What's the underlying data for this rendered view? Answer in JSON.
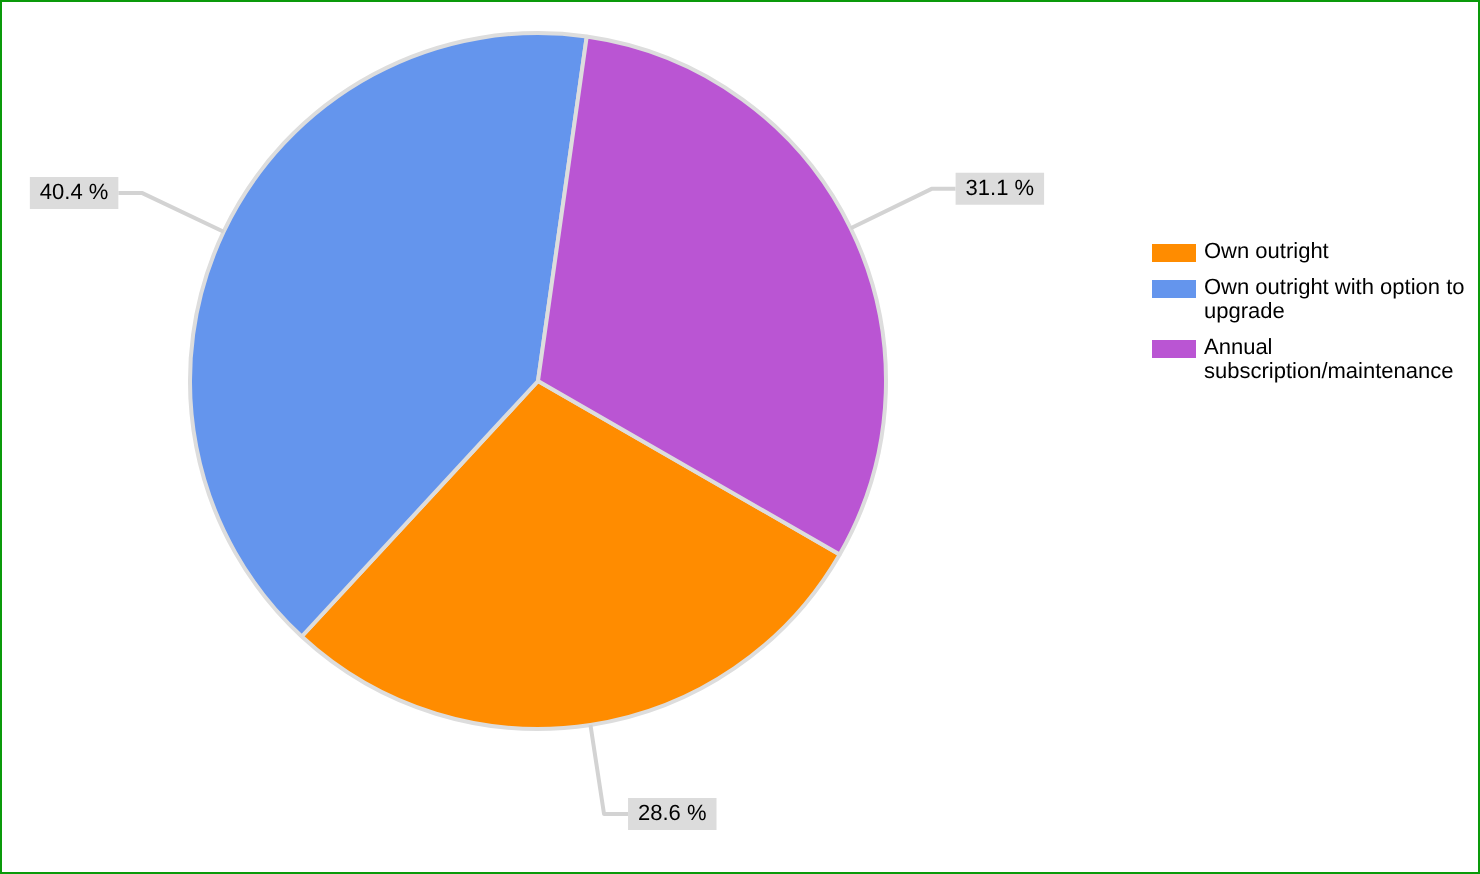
{
  "chart_data": {
    "type": "pie",
    "categories": [
      "Own outright",
      "Own outright with option to upgrade",
      "Annual subscription/maintenance"
    ],
    "values": [
      28.6,
      40.4,
      31.1
    ],
    "colors": [
      "#ff8c00",
      "#6495ed",
      "#ba55d3"
    ],
    "value_labels": [
      "28.6 %",
      "40.4 %",
      "31.1 %"
    ],
    "legend": "right"
  }
}
